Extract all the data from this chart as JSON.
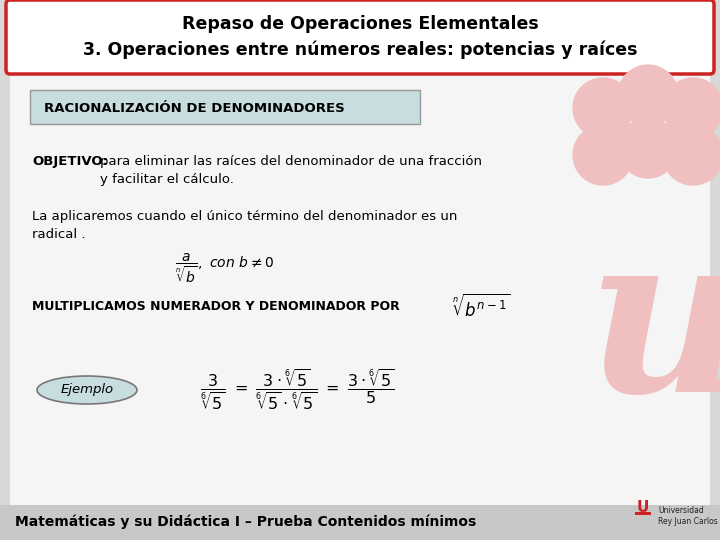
{
  "title_line1": "Repaso de Operaciones Elementales",
  "title_line2": "3. Operaciones entre números reales: potencias y raíces",
  "title_bg": "#ffffff",
  "title_border": "#cc2222",
  "slide_bg": "#d8d8d8",
  "content_bg": "#f5f5f5",
  "section_label": "RACIONALIZACIÓN DE DENOMINADORES",
  "section_bg": "#c8dde0",
  "section_border": "#999999",
  "text1_bold": "OBJETIVO:",
  "text1_rest": " para eliminar las raíces del denominador de una fracción\ny facilitar el cálculo.",
  "text2": "La aplicaremos cuando el único término del denominador es un\nradical .",
  "text3": "MULTIPLICAMOS NUMERADOR Y DENOMINADOR POR",
  "ejemplo_label": "Ejemplo",
  "ejemplo_bg": "#c8dde0",
  "footer": "Matemáticas y su Didáctica I – Prueba Contenidos mínimos",
  "footer_bg": "#c8c8c8",
  "wm_color": "#f0c0c0",
  "logo_color": "#cc2222"
}
